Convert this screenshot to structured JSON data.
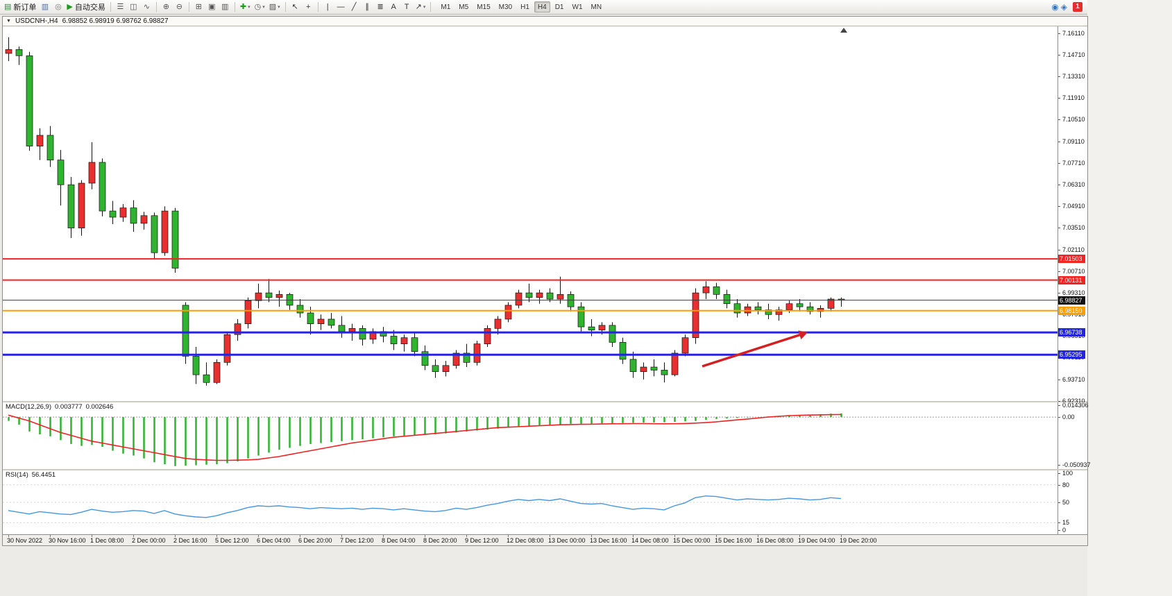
{
  "toolbar": {
    "groups": [
      [
        {
          "name": "new-order",
          "icon": "new-order-icon",
          "glyph": "▤",
          "glyph_color": "#2e8b2e",
          "label": "新订单"
        },
        {
          "name": "chart-terminal",
          "icon": "terminal-icon",
          "glyph": "▥",
          "glyph_color": "#4a6fb5"
        },
        {
          "name": "market-data",
          "icon": "market-data-icon",
          "glyph": "◎",
          "glyph_color": "#777777"
        },
        {
          "name": "auto-trading",
          "icon": "auto-trading-icon",
          "glyph": "▶",
          "glyph_color": "#1f9a1f",
          "label": "自动交易"
        }
      ],
      [
        {
          "name": "bar-chart-mode",
          "icon": "bar-chart-icon",
          "glyph": "☰",
          "glyph_color": "#555555"
        },
        {
          "name": "candlestick-chart-mode",
          "icon": "candlestick-chart-icon",
          "glyph": "◫",
          "glyph_color": "#555555"
        },
        {
          "name": "line-chart-mode",
          "icon": "line-chart-icon",
          "glyph": "∿",
          "glyph_color": "#555555"
        }
      ],
      [
        {
          "name": "zoom-in",
          "icon": "zoom-in-icon",
          "glyph": "⊕",
          "glyph_color": "#555555"
        },
        {
          "name": "zoom-out",
          "icon": "zoom-out-icon",
          "glyph": "⊖",
          "glyph_color": "#555555"
        }
      ],
      [
        {
          "name": "tile-windows",
          "icon": "tile-windows-icon",
          "glyph": "⊞",
          "glyph_color": "#555555"
        },
        {
          "name": "auto-scroll",
          "icon": "auto-scroll-icon",
          "glyph": "▣",
          "glyph_color": "#555555"
        },
        {
          "name": "chart-shift",
          "icon": "chart-shift-icon",
          "glyph": "▥",
          "glyph_color": "#555555"
        }
      ],
      [
        {
          "name": "indicators",
          "icon": "indicators-icon",
          "glyph": "✚",
          "glyph_color": "#1f9a1f",
          "caret": true
        },
        {
          "name": "periods",
          "icon": "periods-clock-icon",
          "glyph": "◷",
          "glyph_color": "#555555",
          "caret": true
        },
        {
          "name": "templates",
          "icon": "templates-icon",
          "glyph": "▨",
          "glyph_color": "#555555",
          "caret": true
        }
      ],
      [
        {
          "name": "cursor-tool",
          "icon": "cursor-icon",
          "glyph": "↖",
          "glyph_color": "#333333"
        },
        {
          "name": "crosshair-tool",
          "icon": "crosshair-icon",
          "glyph": "+",
          "glyph_color": "#333333"
        }
      ],
      [
        {
          "name": "vertical-line-tool",
          "icon": "vertical-line-icon",
          "glyph": "|",
          "glyph_color": "#333333"
        },
        {
          "name": "horizontal-line-tool",
          "icon": "horizontal-line-icon",
          "glyph": "―",
          "glyph_color": "#333333"
        },
        {
          "name": "trendline-tool",
          "icon": "trendline-icon",
          "glyph": "╱",
          "glyph_color": "#333333"
        },
        {
          "name": "channel-tool",
          "icon": "channel-icon",
          "glyph": "∥",
          "glyph_color": "#333333"
        },
        {
          "name": "fibonacci-tool",
          "icon": "fibonacci-icon",
          "glyph": "≣",
          "glyph_color": "#333333"
        },
        {
          "name": "text-tool",
          "icon": "text-icon",
          "glyph": "A",
          "glyph_color": "#333333"
        },
        {
          "name": "label-tool",
          "icon": "label-icon",
          "glyph": "T",
          "glyph_color": "#333333"
        },
        {
          "name": "arrows-tool",
          "icon": "arrows-icon",
          "glyph": "↗",
          "glyph_color": "#333333",
          "caret": true
        }
      ]
    ],
    "timeframes": [
      {
        "label": "M1"
      },
      {
        "label": "M5"
      },
      {
        "label": "M15"
      },
      {
        "label": "M30"
      },
      {
        "label": "H1"
      },
      {
        "label": "H4",
        "active": true
      },
      {
        "label": "D1"
      },
      {
        "label": "W1"
      },
      {
        "label": "MN"
      }
    ],
    "right_icons": [
      {
        "name": "community-icon",
        "glyph": "◉",
        "color": "#3a77c2"
      },
      {
        "name": "search-icon",
        "glyph": "◈",
        "color": "#3a77c2"
      }
    ],
    "badge": "1"
  },
  "chart_window": {
    "menu_marker": "▼",
    "title": "USDCNH-,H4",
    "quotes": "6.98852 6.98919 6.98762 6.98827"
  },
  "indicators": {
    "macd": {
      "label": "MACD(12,26,9)",
      "value_main": "0.003777",
      "value_signal": "0.002646"
    },
    "rsi": {
      "label": "RSI(14)",
      "value": "56.4451"
    }
  },
  "chart_data": [
    {
      "type": "candlestick",
      "symbol": "USDCNH",
      "timeframe": "H4",
      "up_color": "#e93030",
      "down_color": "#2eb42e",
      "y_range": [
        6.923,
        7.1655
      ],
      "y_tick_step": 0.014,
      "y_tick_labels": [
        "7.16110",
        "7.14710",
        "7.13310",
        "7.11910",
        "7.10510",
        "7.09110",
        "7.07710",
        "7.06310",
        "7.04910",
        "7.03510",
        "7.02110",
        "7.00710",
        "6.99310",
        "6.97910",
        "6.96510",
        "6.95110",
        "6.93710",
        "6.92310"
      ],
      "x_labels": [
        "30 Nov 2022",
        "30 Nov 16:00",
        "1 Dec 08:00",
        "2 Dec 00:00",
        "2 Dec 16:00",
        "5 Dec 12:00",
        "6 Dec 04:00",
        "6 Dec 20:00",
        "7 Dec 12:00",
        "8 Dec 04:00",
        "8 Dec 20:00",
        "9 Dec 12:00",
        "12 Dec 08:00",
        "13 Dec 00:00",
        "13 Dec 16:00",
        "14 Dec 08:00",
        "15 Dec 00:00",
        "15 Dec 16:00",
        "16 Dec 08:00",
        "19 Dec 04:00",
        "19 Dec 20:00"
      ],
      "ohlc": [
        [
          7.148,
          7.1585,
          7.143,
          7.1505
        ],
        [
          7.1505,
          7.1525,
          7.1405,
          7.1465
        ],
        [
          7.1465,
          7.149,
          7.085,
          7.088
        ],
        [
          7.088,
          7.0995,
          7.079,
          7.095
        ],
        [
          7.095,
          7.101,
          7.0745,
          7.079
        ],
        [
          7.079,
          7.0855,
          7.0495,
          7.063
        ],
        [
          7.063,
          7.068,
          7.0285,
          7.035
        ],
        [
          7.035,
          7.066,
          7.03,
          7.064
        ],
        [
          7.064,
          7.0905,
          7.06,
          7.0775
        ],
        [
          7.0775,
          7.08,
          7.0425,
          7.046
        ],
        [
          7.046,
          7.0525,
          7.0375,
          7.042
        ],
        [
          7.042,
          7.0505,
          7.039,
          7.048
        ],
        [
          7.048,
          7.053,
          7.0325,
          7.038
        ],
        [
          7.038,
          7.0455,
          7.034,
          7.043
        ],
        [
          7.043,
          7.045,
          7.015,
          7.019
        ],
        [
          7.019,
          7.049,
          7.017,
          7.046
        ],
        [
          7.046,
          7.048,
          7.006,
          7.009
        ],
        [
          6.985,
          6.987,
          6.947,
          6.952
        ],
        [
          6.952,
          6.958,
          6.934,
          6.94
        ],
        [
          6.94,
          6.948,
          6.933,
          6.935
        ],
        [
          6.935,
          6.95,
          6.934,
          6.948
        ],
        [
          6.948,
          6.968,
          6.946,
          6.966
        ],
        [
          6.966,
          6.976,
          6.962,
          6.973
        ],
        [
          6.973,
          6.99,
          6.97,
          6.988
        ],
        [
          6.988,
          6.999,
          6.983,
          6.993
        ],
        [
          6.993,
          7.002,
          6.987,
          6.99
        ],
        [
          6.99,
          6.9945,
          6.984,
          6.992
        ],
        [
          6.992,
          6.993,
          6.982,
          6.985
        ],
        [
          6.985,
          6.989,
          6.977,
          6.98
        ],
        [
          6.98,
          6.984,
          6.966,
          6.973
        ],
        [
          6.973,
          6.979,
          6.969,
          6.976
        ],
        [
          6.976,
          6.98,
          6.97,
          6.972
        ],
        [
          6.972,
          6.978,
          6.964,
          6.968
        ],
        [
          6.968,
          6.973,
          6.962,
          6.97
        ],
        [
          6.97,
          6.972,
          6.959,
          6.963
        ],
        [
          6.963,
          6.97,
          6.96,
          6.968
        ],
        [
          6.968,
          6.971,
          6.961,
          6.965
        ],
        [
          6.965,
          6.969,
          6.956,
          6.96
        ],
        [
          6.96,
          6.966,
          6.955,
          6.964
        ],
        [
          6.964,
          6.967,
          6.952,
          6.955
        ],
        [
          6.955,
          6.959,
          6.943,
          6.946
        ],
        [
          6.946,
          6.95,
          6.938,
          6.942
        ],
        [
          6.942,
          6.949,
          6.939,
          6.946
        ],
        [
          6.946,
          6.956,
          6.944,
          6.954
        ],
        [
          6.954,
          6.96,
          6.945,
          6.948
        ],
        [
          6.948,
          6.962,
          6.946,
          6.96
        ],
        [
          6.96,
          6.972,
          6.958,
          6.97
        ],
        [
          6.97,
          6.978,
          6.966,
          6.976
        ],
        [
          6.976,
          6.987,
          6.974,
          6.985
        ],
        [
          6.985,
          6.995,
          6.983,
          6.993
        ],
        [
          6.993,
          6.999,
          6.987,
          6.99
        ],
        [
          6.99,
          6.995,
          6.986,
          6.993
        ],
        [
          6.993,
          6.996,
          6.987,
          6.989
        ],
        [
          6.989,
          7.0035,
          6.986,
          6.992
        ],
        [
          6.992,
          6.994,
          6.981,
          6.984
        ],
        [
          6.984,
          6.987,
          6.968,
          6.971
        ],
        [
          6.971,
          6.976,
          6.965,
          6.969
        ],
        [
          6.969,
          6.974,
          6.966,
          6.972
        ],
        [
          6.972,
          6.974,
          6.958,
          6.961
        ],
        [
          6.961,
          6.964,
          6.947,
          6.95
        ],
        [
          6.95,
          6.955,
          6.938,
          6.942
        ],
        [
          6.942,
          6.948,
          6.937,
          6.945
        ],
        [
          6.945,
          6.95,
          6.939,
          6.943
        ],
        [
          6.943,
          6.948,
          6.935,
          6.94
        ],
        [
          6.94,
          6.956,
          6.939,
          6.954
        ],
        [
          6.954,
          6.966,
          6.952,
          6.964
        ],
        [
          6.964,
          6.996,
          6.96,
          6.993
        ],
        [
          6.993,
          7.0005,
          6.989,
          6.997
        ],
        [
          6.997,
          6.9995,
          6.989,
          6.992
        ],
        [
          6.992,
          6.995,
          6.983,
          6.986
        ],
        [
          6.986,
          6.989,
          6.977,
          6.98
        ],
        [
          6.98,
          6.986,
          6.978,
          6.984
        ],
        [
          6.984,
          6.987,
          6.979,
          6.982
        ],
        [
          6.982,
          6.986,
          6.976,
          6.979
        ],
        [
          6.979,
          6.984,
          6.975,
          6.982
        ],
        [
          6.982,
          6.988,
          6.98,
          6.986
        ],
        [
          6.986,
          6.989,
          6.981,
          6.984
        ],
        [
          6.984,
          6.987,
          6.979,
          6.981
        ],
        [
          6.981,
          6.985,
          6.977,
          6.983
        ],
        [
          6.983,
          6.99,
          6.981,
          6.989
        ],
        [
          6.989,
          6.99,
          6.984,
          6.98827
        ]
      ],
      "hlines": [
        {
          "value": 7.01503,
          "label": "7.01503",
          "color": "#f22323",
          "width": 2
        },
        {
          "value": 7.00131,
          "label": "7.00131",
          "color": "#f22323",
          "width": 2
        },
        {
          "value": 6.9815,
          "label": "6.98150",
          "color": "#ff9e00",
          "width": 2
        },
        {
          "value": 6.96738,
          "label": "6.96738",
          "color": "#2424dd",
          "width": 3
        },
        {
          "value": 6.95295,
          "label": "6.95295",
          "color": "#2424dd",
          "width": 3
        }
      ],
      "current_price": {
        "value": 6.98827,
        "label": "6.98827",
        "color": "#101010"
      },
      "arrow_annotation": {
        "from": [
          1008,
          490
        ],
        "to": [
          1160,
          441
        ],
        "color": "#d42020"
      }
    },
    {
      "type": "bar",
      "name": "MACD",
      "params": "12,26,9",
      "y_range": [
        -0.054,
        0.0152
      ],
      "y_ticks": [
        {
          "value": 0.014306,
          "label": "0.014306"
        },
        {
          "value": 0,
          "label": "0.00"
        },
        {
          "value": -0.050937,
          "label": "-0.050937"
        }
      ],
      "histogram_color": "#2eb42e",
      "signal_color": "#ee2222",
      "histogram": [
        -0.004,
        -0.008,
        -0.015,
        -0.018,
        -0.02,
        -0.024,
        -0.028,
        -0.03,
        -0.029,
        -0.031,
        -0.035,
        -0.038,
        -0.04,
        -0.043,
        -0.047,
        -0.049,
        -0.0509,
        -0.0505,
        -0.05,
        -0.0495,
        -0.049,
        -0.048,
        -0.046,
        -0.043,
        -0.04,
        -0.037,
        -0.034,
        -0.032,
        -0.03,
        -0.028,
        -0.027,
        -0.026,
        -0.025,
        -0.024,
        -0.023,
        -0.022,
        -0.021,
        -0.02,
        -0.0195,
        -0.019,
        -0.0185,
        -0.018,
        -0.017,
        -0.016,
        -0.015,
        -0.014,
        -0.013,
        -0.012,
        -0.011,
        -0.01,
        -0.009,
        -0.0085,
        -0.008,
        -0.0075,
        -0.007,
        -0.007,
        -0.0068,
        -0.0066,
        -0.0064,
        -0.0062,
        -0.006,
        -0.0058,
        -0.0056,
        -0.0054,
        -0.005,
        -0.0045,
        -0.004,
        -0.003,
        -0.002,
        -0.0015,
        -0.001,
        -0.0005,
        0.0,
        0.0005,
        0.001,
        0.0015,
        0.002,
        0.0025,
        0.003,
        0.0035,
        0.003777
      ],
      "signal": [
        0.002,
        -0.001,
        -0.004,
        -0.008,
        -0.012,
        -0.016,
        -0.019,
        -0.022,
        -0.025,
        -0.027,
        -0.029,
        -0.031,
        -0.033,
        -0.035,
        -0.037,
        -0.039,
        -0.041,
        -0.043,
        -0.044,
        -0.0445,
        -0.045,
        -0.045,
        -0.0448,
        -0.0445,
        -0.044,
        -0.0425,
        -0.041,
        -0.039,
        -0.037,
        -0.035,
        -0.033,
        -0.031,
        -0.029,
        -0.027,
        -0.0255,
        -0.024,
        -0.0225,
        -0.021,
        -0.02,
        -0.019,
        -0.018,
        -0.017,
        -0.016,
        -0.015,
        -0.014,
        -0.013,
        -0.012,
        -0.011,
        -0.0105,
        -0.01,
        -0.0095,
        -0.009,
        -0.0085,
        -0.008,
        -0.0078,
        -0.0076,
        -0.0074,
        -0.0072,
        -0.007,
        -0.0069,
        -0.0068,
        -0.0068,
        -0.0069,
        -0.007,
        -0.0069,
        -0.0067,
        -0.0063,
        -0.0058,
        -0.005,
        -0.004,
        -0.003,
        -0.002,
        -0.001,
        0.0,
        0.0008,
        0.0014,
        0.0018,
        0.0021,
        0.0023,
        0.0025,
        0.002646
      ]
    },
    {
      "type": "line",
      "name": "RSI",
      "params": "14",
      "y_range": [
        0,
        100
      ],
      "line_color": "#4596e0",
      "levels": [
        {
          "value": 100,
          "label": "100"
        },
        {
          "value": 80,
          "label": "80"
        },
        {
          "value": 50,
          "label": "50"
        },
        {
          "value": 15,
          "label": "15"
        },
        {
          "value": 0,
          "label": "0"
        }
      ],
      "values": [
        36,
        33,
        30,
        34,
        32,
        30,
        29,
        33,
        38,
        35,
        33,
        34,
        36,
        35,
        31,
        36,
        30,
        27,
        25,
        24,
        27,
        32,
        36,
        41,
        44,
        43,
        44,
        42,
        41,
        39,
        41,
        40,
        39,
        40,
        38,
        40,
        39,
        37,
        39,
        37,
        35,
        34,
        36,
        40,
        38,
        41,
        45,
        48,
        52,
        55,
        53,
        55,
        53,
        56,
        52,
        48,
        47,
        48,
        44,
        41,
        38,
        40,
        39,
        37,
        44,
        49,
        58,
        61,
        60,
        57,
        54,
        56,
        55,
        54,
        55,
        57,
        56,
        54,
        55,
        58,
        56.4451
      ]
    }
  ]
}
